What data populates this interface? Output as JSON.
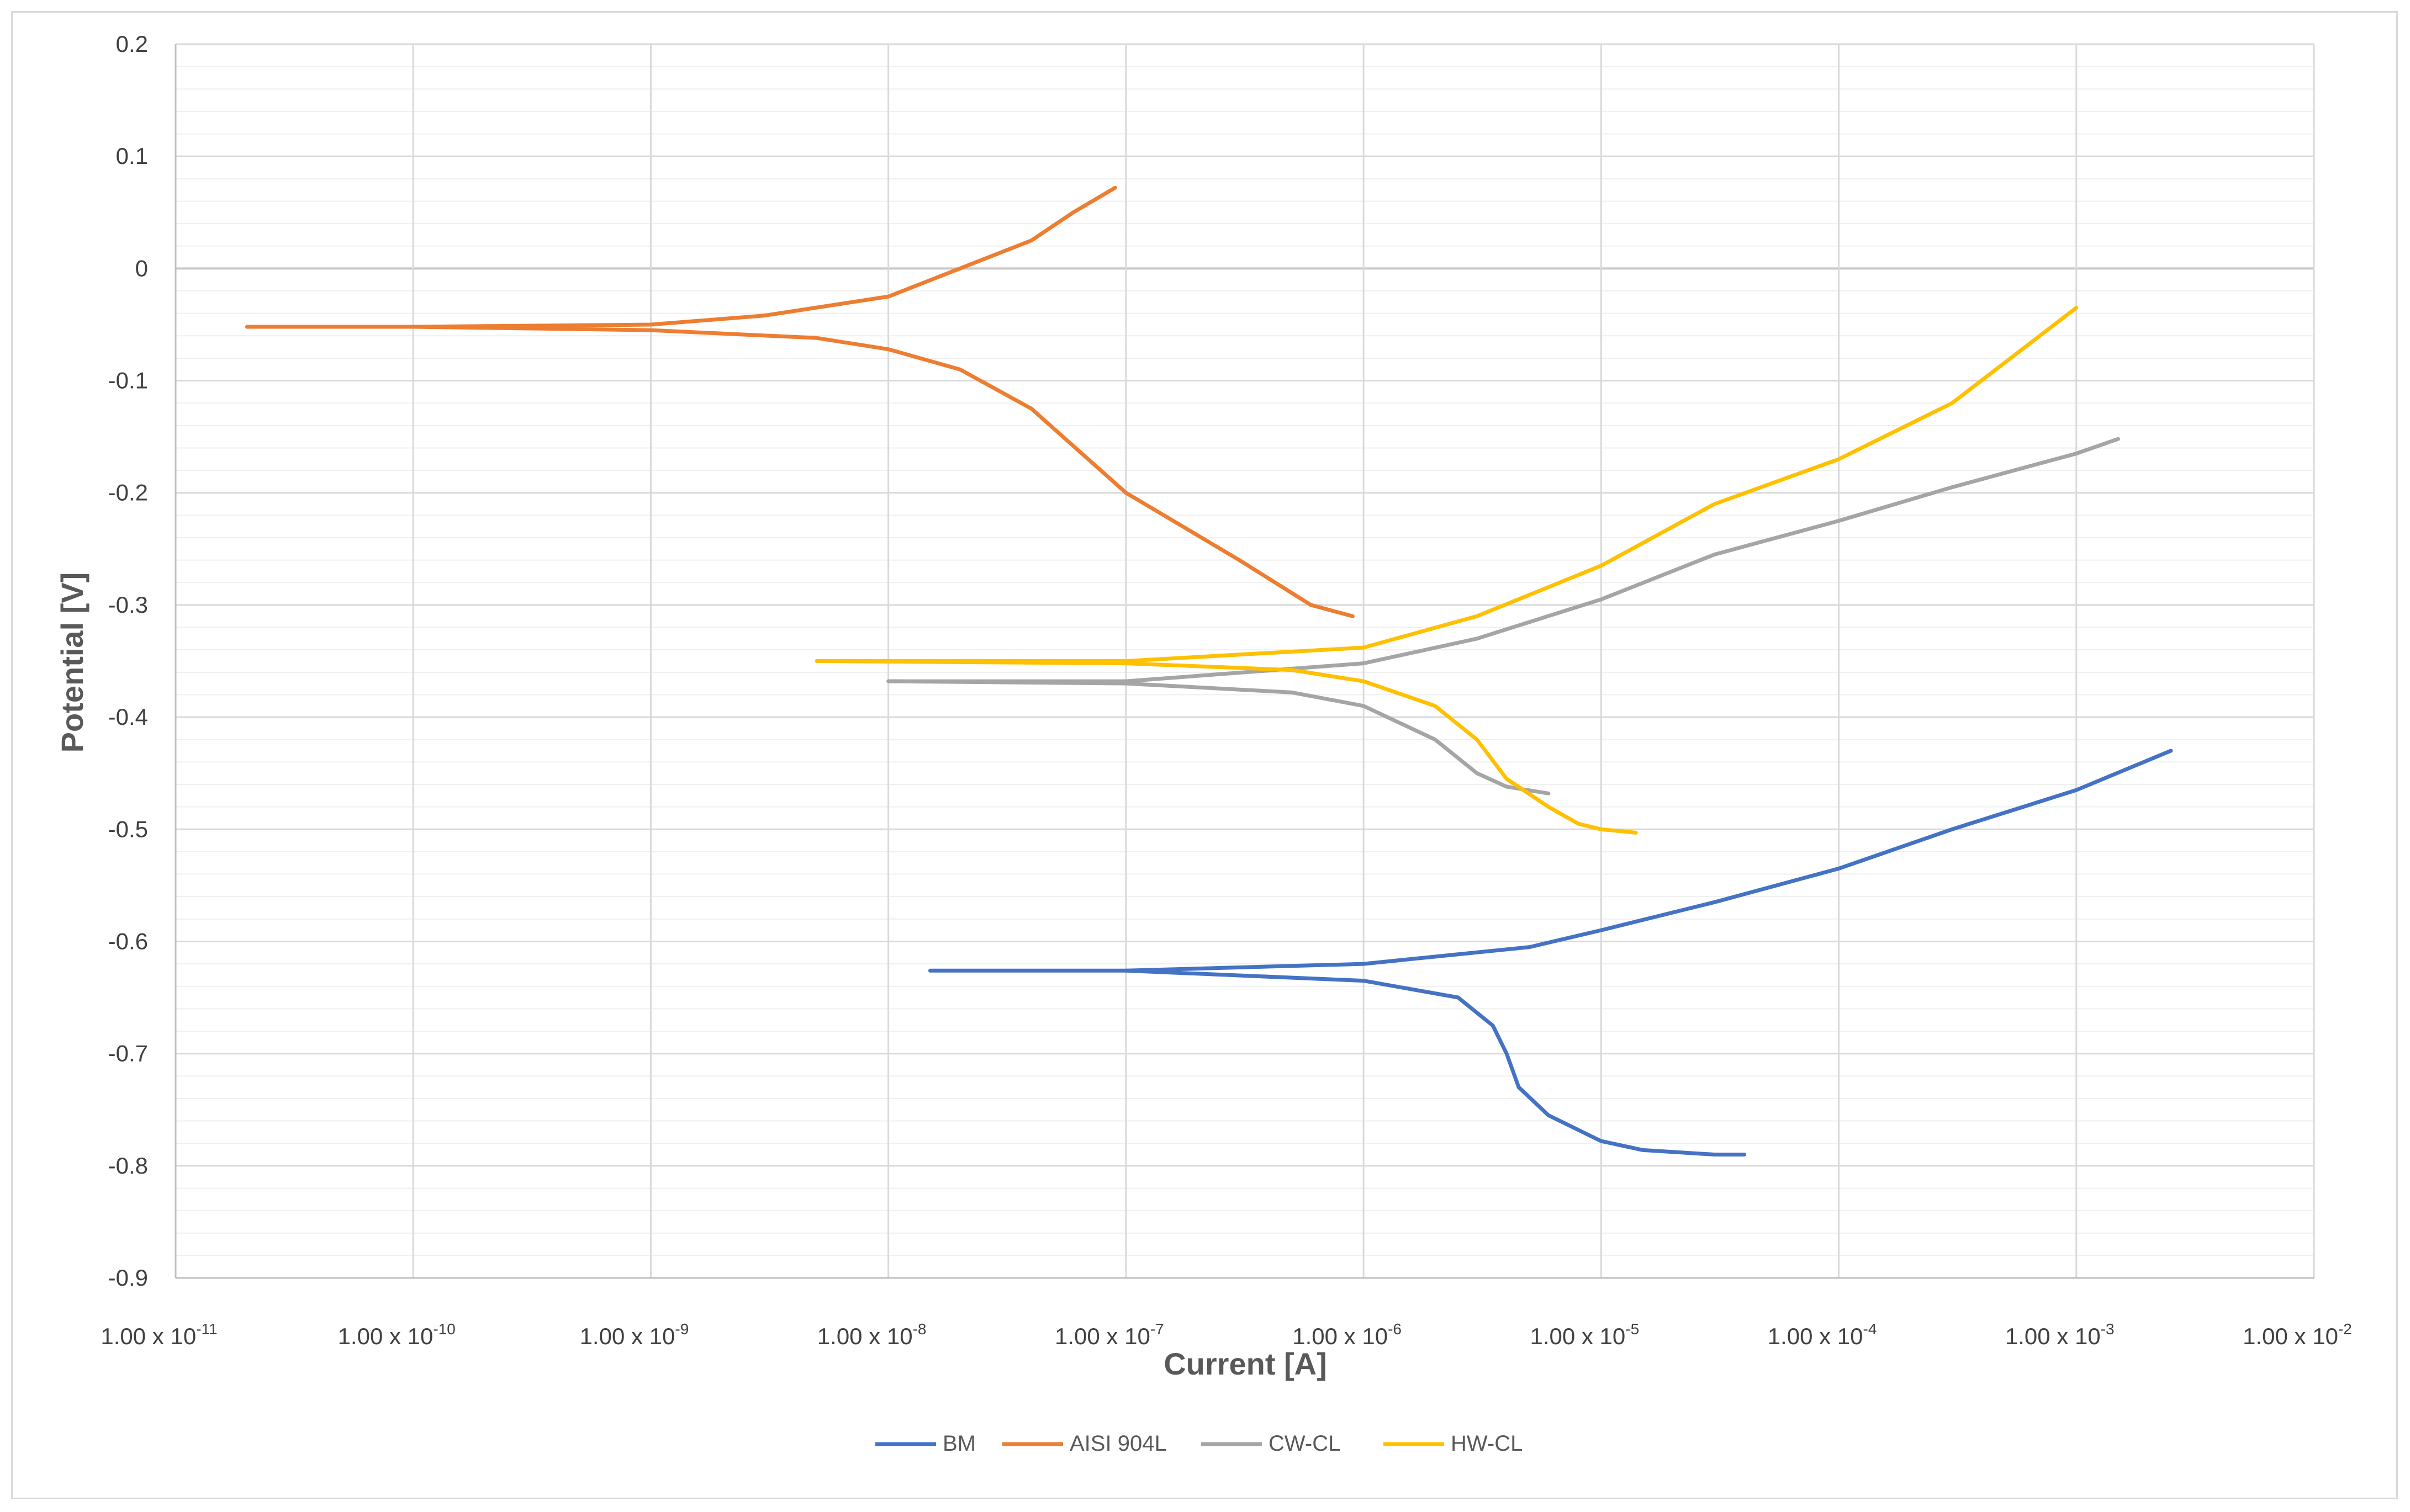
{
  "chart_data": {
    "type": "line",
    "title": "",
    "xlabel": "Current [A]",
    "ylabel": "Potential [V]",
    "x_scale": "log",
    "xlim": [
      1e-11,
      0.01
    ],
    "ylim": [
      -0.9,
      0.2
    ],
    "y_ticks": [
      0.2,
      0.1,
      0,
      -0.1,
      -0.2,
      -0.3,
      -0.4,
      -0.5,
      -0.6,
      -0.7,
      -0.8,
      -0.9
    ],
    "y_tick_labels": [
      "0.2",
      "0.1",
      "0",
      "-0.1",
      "-0.2",
      "-0.3",
      "-0.4",
      "-0.5",
      "-0.6",
      "-0.7",
      "-0.8",
      "-0.9"
    ],
    "x_ticks": [
      {
        "value": 1e-11,
        "mantissa": "1.00 x 10",
        "exp": "-11"
      },
      {
        "value": 1e-10,
        "mantissa": "1.00 x 10",
        "exp": "-10"
      },
      {
        "value": 1e-09,
        "mantissa": "1.00 x 10",
        "exp": "-9"
      },
      {
        "value": 1e-08,
        "mantissa": "1.00 x 10",
        "exp": "-8"
      },
      {
        "value": 1e-07,
        "mantissa": "1.00 x 10",
        "exp": "-7"
      },
      {
        "value": 1e-06,
        "mantissa": "1.00 x 10",
        "exp": "-6"
      },
      {
        "value": 1e-05,
        "mantissa": "1.00 x 10",
        "exp": "-5"
      },
      {
        "value": 0.0001,
        "mantissa": "1.00 x 10",
        "exp": "-4"
      },
      {
        "value": 0.001,
        "mantissa": "1.00 x 10",
        "exp": "-3"
      },
      {
        "value": 0.01,
        "mantissa": "1.00 x 10",
        "exp": "-2"
      }
    ],
    "grid": true,
    "legend_position": "bottom",
    "series": [
      {
        "name": "BM",
        "color": "#4472C4",
        "branches": [
          {
            "x": [
              1.5e-08,
              1e-07,
              1e-06,
              5e-06,
              1e-05,
              3e-05,
              0.0001,
              0.0003,
              0.001,
              0.0025
            ],
            "y": [
              -0.626,
              -0.626,
              -0.62,
              -0.605,
              -0.59,
              -0.565,
              -0.535,
              -0.5,
              -0.465,
              -0.43
            ]
          },
          {
            "x": [
              1e-07,
              1e-06,
              2.5e-06,
              3.5e-06,
              4e-06,
              4.5e-06,
              6e-06,
              1e-05,
              1.5e-05,
              3e-05,
              4e-05
            ],
            "y": [
              -0.626,
              -0.635,
              -0.65,
              -0.675,
              -0.7,
              -0.73,
              -0.755,
              -0.778,
              -0.786,
              -0.79,
              -0.79
            ]
          }
        ]
      },
      {
        "name": "AISI 904L",
        "color": "#ED7D31",
        "branches": [
          {
            "x": [
              2e-11,
              1e-10,
              1e-09,
              3e-09,
              1e-08,
              2e-08,
              4e-08,
              6e-08,
              9e-08
            ],
            "y": [
              -0.052,
              -0.052,
              -0.05,
              -0.042,
              -0.025,
              0.0,
              0.025,
              0.05,
              0.072
            ]
          },
          {
            "x": [
              2e-11,
              1e-10,
              1e-09,
              5e-09,
              1e-08,
              2e-08,
              4e-08,
              1e-07,
              3e-07,
              6e-07,
              9e-07
            ],
            "y": [
              -0.052,
              -0.052,
              -0.055,
              -0.062,
              -0.072,
              -0.09,
              -0.125,
              -0.2,
              -0.26,
              -0.3,
              -0.31
            ]
          }
        ]
      },
      {
        "name": "CW-CL",
        "color": "#A5A5A5",
        "branches": [
          {
            "x": [
              1e-08,
              1e-07,
              1e-06,
              3e-06,
              1e-05,
              3e-05,
              0.0001,
              0.0003,
              0.001,
              0.0015
            ],
            "y": [
              -0.368,
              -0.368,
              -0.352,
              -0.33,
              -0.295,
              -0.255,
              -0.225,
              -0.195,
              -0.165,
              -0.152
            ]
          },
          {
            "x": [
              1e-08,
              1e-07,
              5e-07,
              1e-06,
              2e-06,
              3e-06,
              4e-06,
              6e-06
            ],
            "y": [
              -0.368,
              -0.37,
              -0.378,
              -0.39,
              -0.42,
              -0.45,
              -0.462,
              -0.468
            ]
          }
        ]
      },
      {
        "name": "HW-CL",
        "color": "#FFC000",
        "branches": [
          {
            "x": [
              5e-09,
              1e-07,
              1e-06,
              3e-06,
              1e-05,
              3e-05,
              0.0001,
              0.0003,
              0.001
            ],
            "y": [
              -0.35,
              -0.35,
              -0.338,
              -0.31,
              -0.265,
              -0.21,
              -0.17,
              -0.12,
              -0.035
            ]
          },
          {
            "x": [
              5e-09,
              1e-07,
              5e-07,
              1e-06,
              2e-06,
              3e-06,
              4e-06,
              6e-06,
              8e-06,
              1e-05,
              1.4e-05
            ],
            "y": [
              -0.35,
              -0.352,
              -0.358,
              -0.368,
              -0.39,
              -0.42,
              -0.455,
              -0.48,
              -0.495,
              -0.5,
              -0.503
            ]
          }
        ]
      }
    ]
  }
}
